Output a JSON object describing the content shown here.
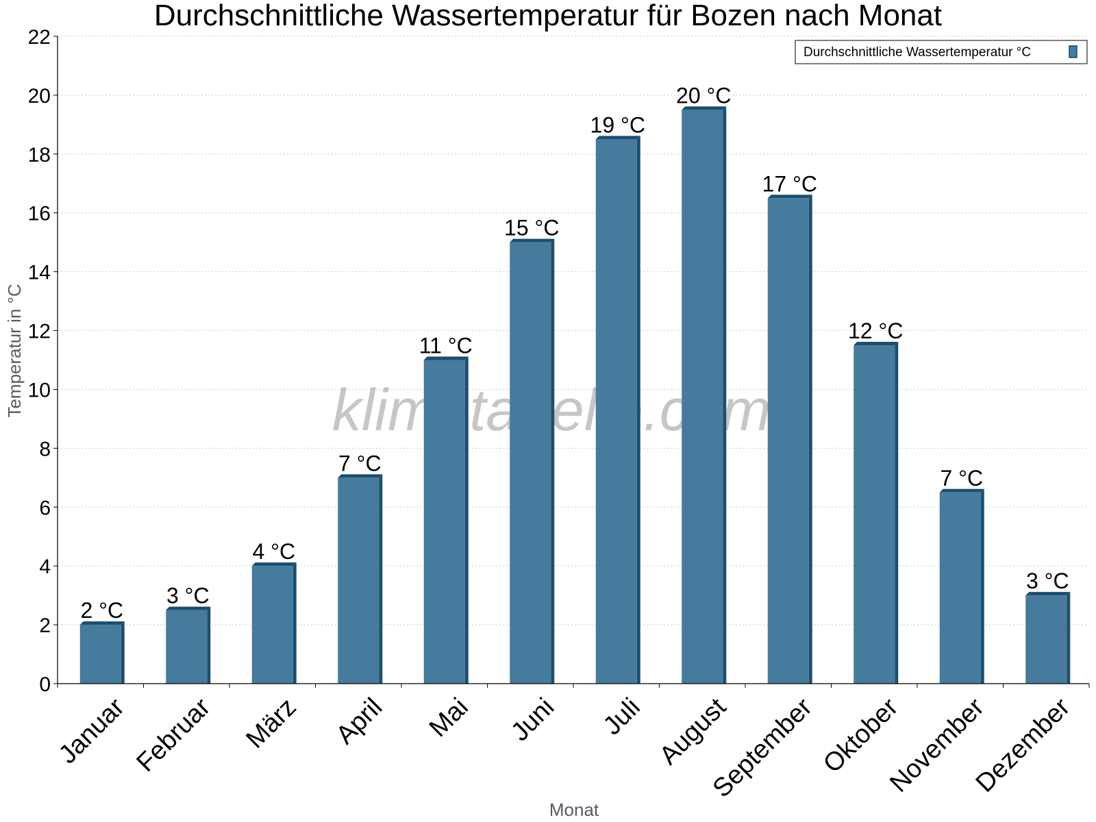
{
  "chart_data": {
    "type": "bar",
    "title": "Durchschnittliche Wassertemperatur für Bozen nach Monat",
    "xlabel": "Monat",
    "ylabel": "Temperatur in °C",
    "categories": [
      "Januar",
      "Februar",
      "März",
      "April",
      "Mai",
      "Juni",
      "Juli",
      "August",
      "September",
      "Oktober",
      "November",
      "Dezember"
    ],
    "series": [
      {
        "name": "Durchschnittliche Wassertemperatur °C",
        "values": [
          2,
          2.5,
          4,
          7,
          11,
          15,
          18.5,
          19.5,
          16.5,
          11.5,
          6.5,
          3
        ],
        "labels": [
          "2 °C",
          "3 °C",
          "4 °C",
          "7 °C",
          "11 °C",
          "15 °C",
          "19 °C",
          "20 °C",
          "17 °C",
          "12 °C",
          "7 °C",
          "3 °C"
        ]
      }
    ],
    "ylim": [
      0,
      22
    ],
    "yticks": [
      0,
      2,
      4,
      6,
      8,
      10,
      12,
      14,
      16,
      18,
      20,
      22
    ],
    "grid": true,
    "legend_position": "top-right",
    "colors": {
      "bar": "#457b9d",
      "bar_side": "#1d4e6f",
      "grid": "#c8c8c8",
      "axis": "#000000"
    }
  },
  "watermark": "klimatabelle.com"
}
